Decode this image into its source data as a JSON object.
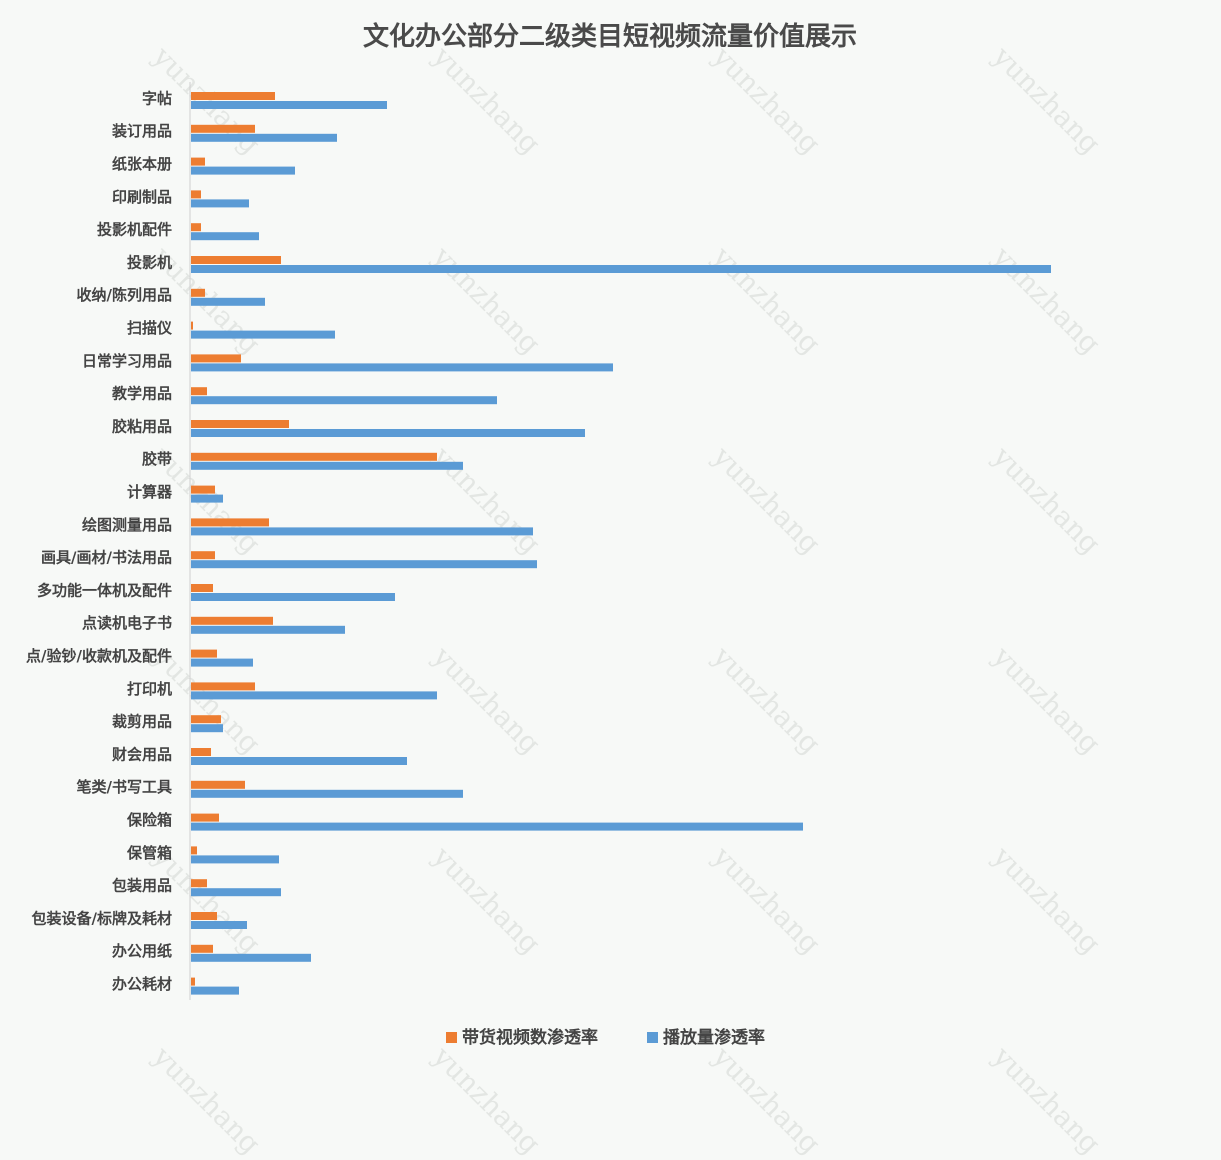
{
  "watermark": "yunzhang",
  "chart_data": {
    "type": "bar",
    "orientation": "horizontal",
    "title": "文化办公部分二级类目短视频流量价值展示",
    "categories": [
      "字帖",
      "装订用品",
      "纸张本册",
      "印刷制品",
      "投影机配件",
      "投影机",
      "收纳/陈列用品",
      "扫描仪",
      "日常学习用品",
      "教学用品",
      "胶粘用品",
      "胶带",
      "计算器",
      "绘图测量用品",
      "画具/画材/书法用品",
      "多功能一体机及配件",
      "点读机电子书",
      "点/验钞/收款机及配件",
      "打印机",
      "裁剪用品",
      "财会用品",
      "笔类/书写工具",
      "保险箱",
      "保管箱",
      "包装用品",
      "包装设备/标牌及耗材",
      "办公用纸",
      "办公耗材"
    ],
    "series": [
      {
        "name": "带货视频数渗透率",
        "color": "#ed7d31",
        "values": [
          0.084,
          0.064,
          0.014,
          0.01,
          0.01,
          0.09,
          0.014,
          0.002,
          0.05,
          0.016,
          0.098,
          0.246,
          0.024,
          0.078,
          0.024,
          0.022,
          0.082,
          0.026,
          0.064,
          0.03,
          0.02,
          0.054,
          0.028,
          0.006,
          0.016,
          0.026,
          0.022,
          0.004
        ]
      },
      {
        "name": "播放量渗透率",
        "color": "#5b9bd5",
        "values": [
          0.196,
          0.146,
          0.104,
          0.058,
          0.068,
          0.86,
          0.074,
          0.144,
          0.422,
          0.306,
          0.394,
          0.272,
          0.032,
          0.342,
          0.346,
          0.204,
          0.154,
          0.062,
          0.246,
          0.032,
          0.216,
          0.272,
          0.612,
          0.088,
          0.09,
          0.056,
          0.12,
          0.048
        ]
      }
    ],
    "grid": false,
    "legend_position": "bottom"
  }
}
